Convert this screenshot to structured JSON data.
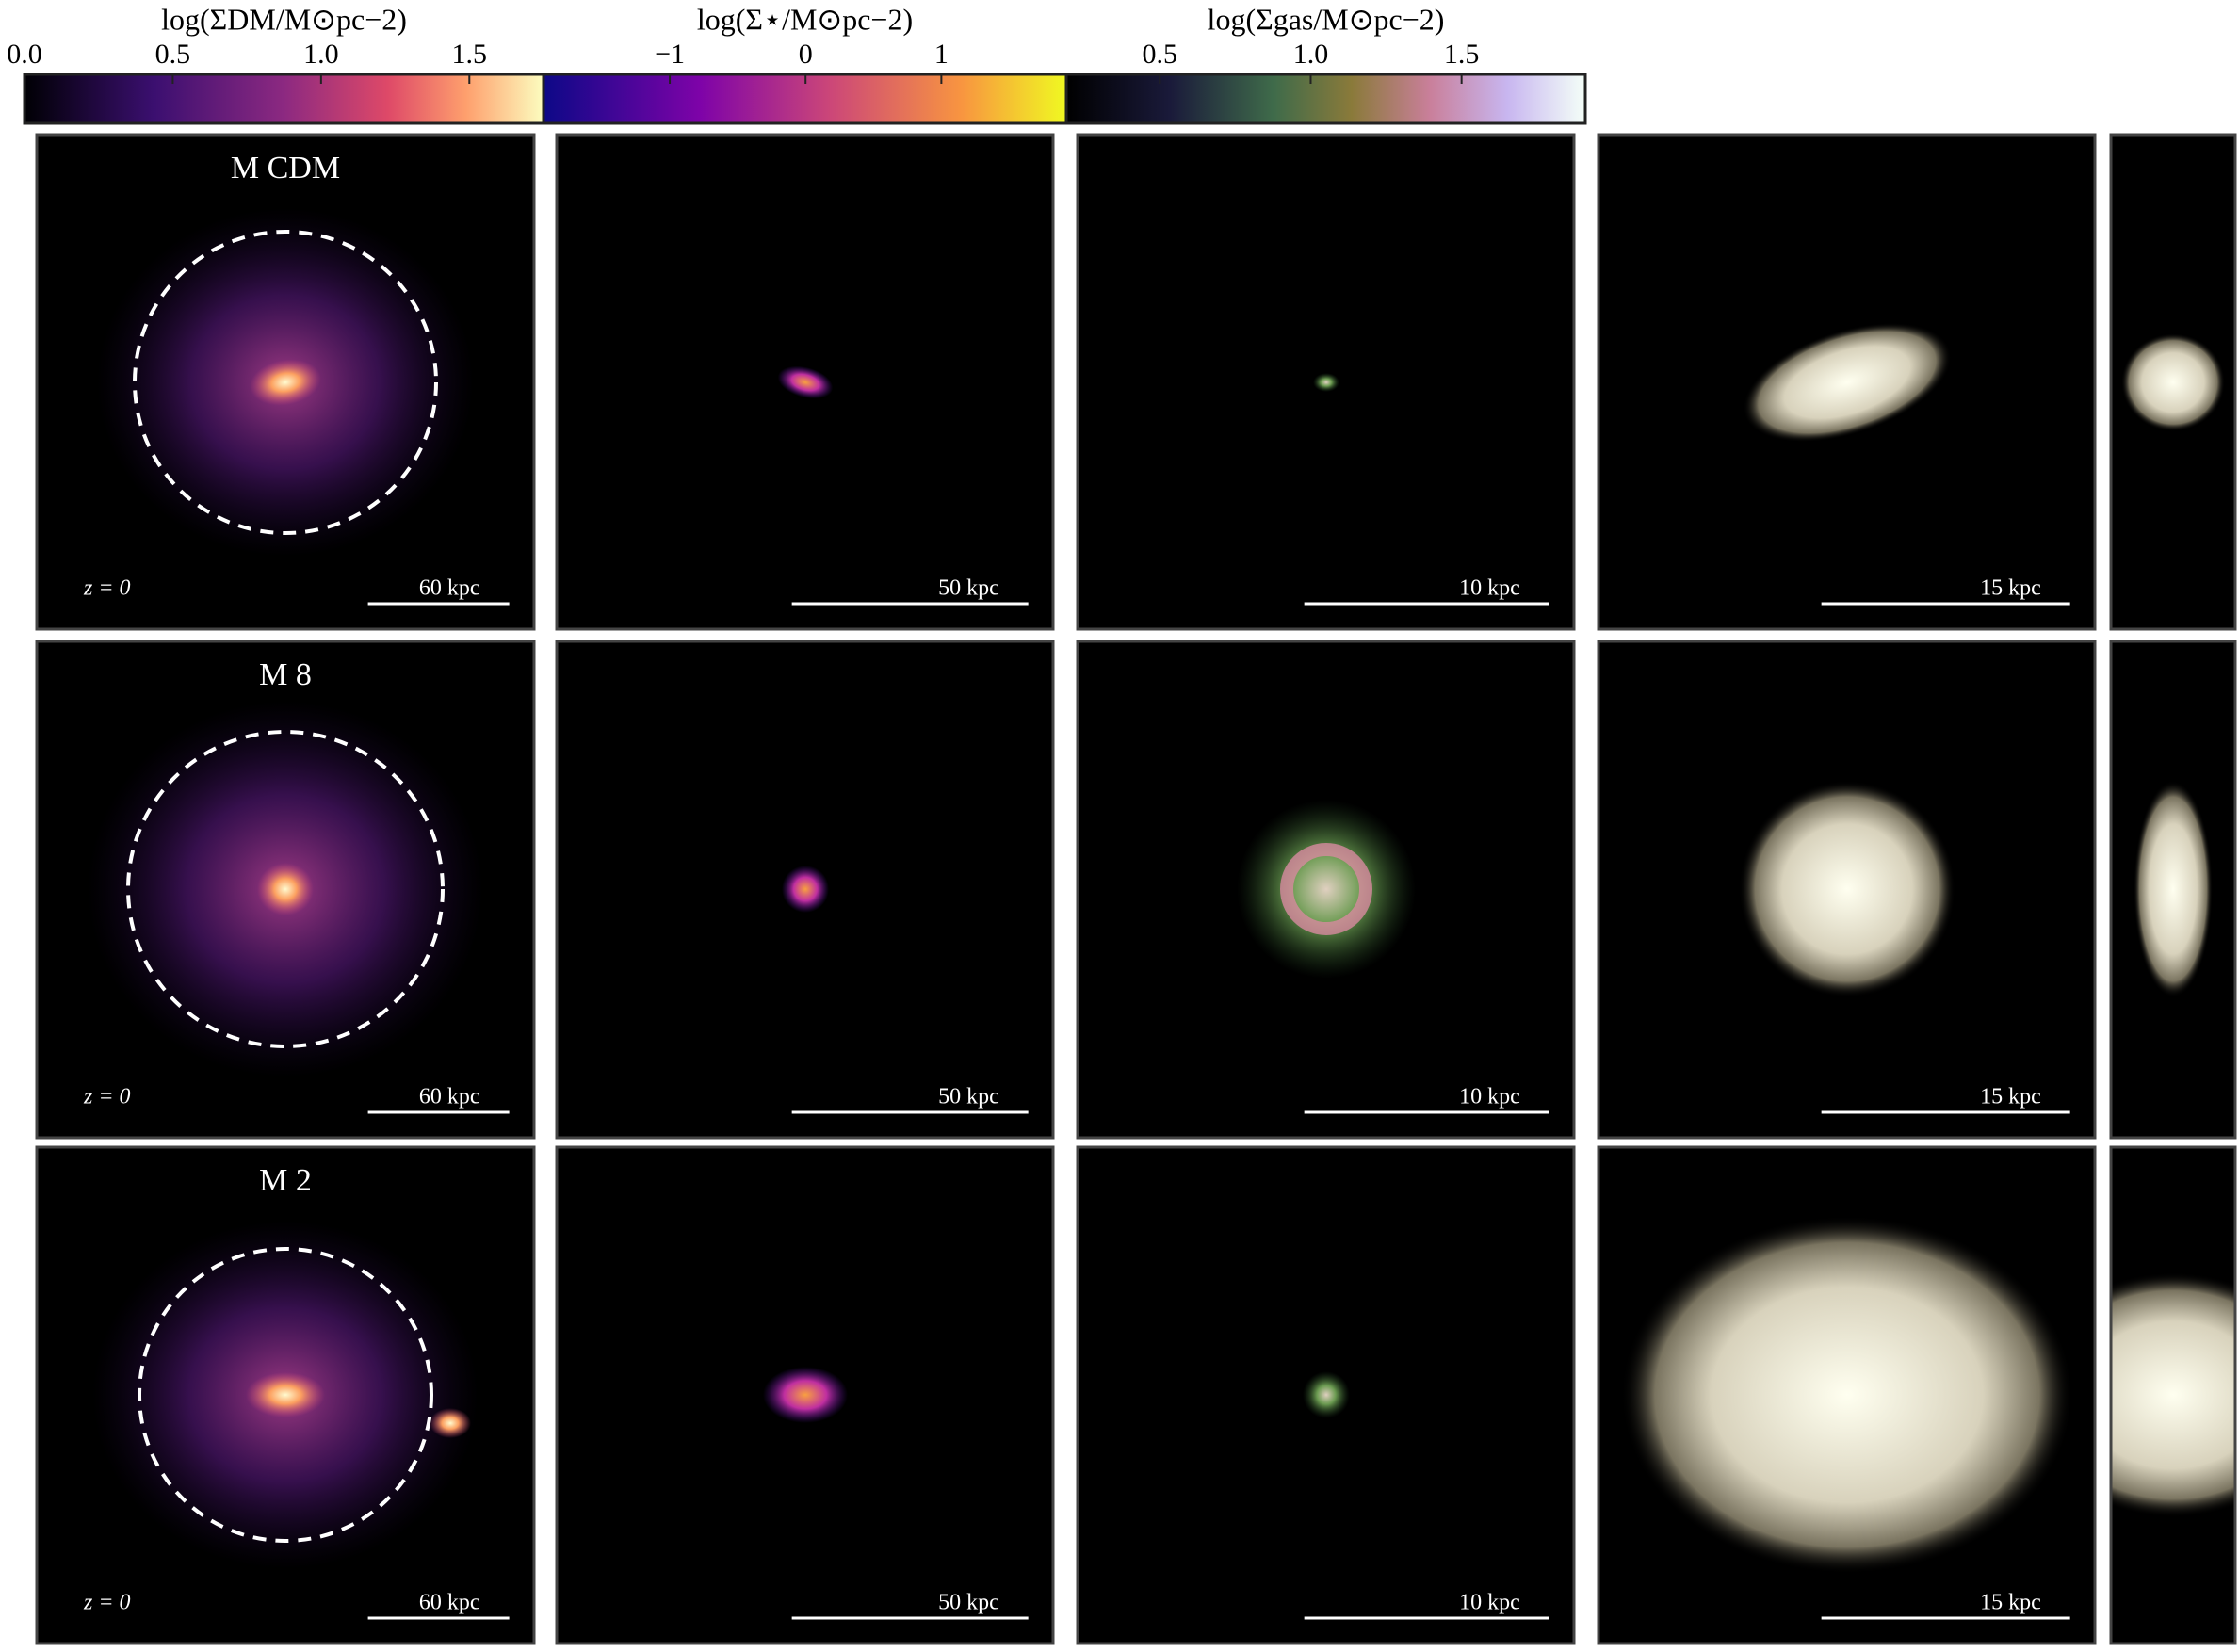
{
  "colorbars": [
    {
      "label": "log(ΣDM/M⊙pc−2)",
      "range": [
        0,
        1.75
      ],
      "ticks": [
        {
          "value": 0,
          "label": "0.0"
        },
        0.5,
        {
          "value": 1,
          "label": "1.0"
        },
        1.5
      ]
    },
    {
      "label": "log(Σ⋆/M⊙pc−2)",
      "range": [
        -1.93,
        1.92
      ],
      "ticks": [
        {
          "value": -1,
          "label": "−1"
        },
        0,
        1
      ]
    },
    {
      "label": "log(Σgas/M⊙pc−2)",
      "range": [
        0.19,
        1.91
      ],
      "ticks": [
        0.5,
        {
          "value": 1,
          "label": "1.0"
        },
        1.5
      ]
    }
  ],
  "rows": [
    {
      "label": "M CDM",
      "redshift": "z = 0",
      "scale_bars": [
        "60 kpc",
        "50 kpc",
        "10 kpc",
        "15 kpc"
      ]
    },
    {
      "label": "M 8",
      "redshift": "z = 0",
      "scale_bars": [
        "60 kpc",
        "50 kpc",
        "10 kpc",
        "15 kpc"
      ]
    },
    {
      "label": "M 2",
      "redshift": "z = 0",
      "scale_bars": [
        "60 kpc",
        "50 kpc",
        "10 kpc",
        "15 kpc"
      ]
    }
  ]
}
